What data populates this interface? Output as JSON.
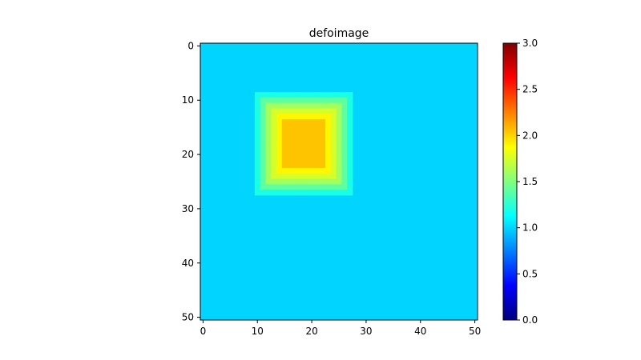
{
  "chart_data": {
    "type": "heatmap",
    "title": "defoimage",
    "xlabel": "",
    "ylabel": "",
    "grid_size": [
      51,
      51
    ],
    "xlim": [
      -0.5,
      50.5
    ],
    "ylim": [
      50.5,
      -0.5
    ],
    "x_ticks": [
      0,
      10,
      20,
      30,
      40,
      50
    ],
    "y_ticks": [
      0,
      10,
      20,
      30,
      40,
      50
    ],
    "x_tick_labels": [
      "0",
      "10",
      "20",
      "30",
      "40",
      "50"
    ],
    "y_tick_labels": [
      "0",
      "10",
      "20",
      "30",
      "40",
      "50"
    ],
    "colormap": "jet",
    "vmin": 0.0,
    "vmax": 3.0,
    "background_value": 1.0,
    "blob": {
      "description_values": "graded square bump above background",
      "layers": [
        {
          "rows": [
            9,
            27
          ],
          "cols": [
            10,
            27
          ],
          "value": 1.2
        },
        {
          "rows": [
            10,
            26
          ],
          "cols": [
            11,
            26
          ],
          "value": 1.4
        },
        {
          "rows": [
            11,
            25
          ],
          "cols": [
            12,
            25
          ],
          "value": 1.6
        },
        {
          "rows": [
            12,
            24
          ],
          "cols": [
            13,
            24
          ],
          "value": 1.75
        },
        {
          "rows": [
            13,
            23
          ],
          "cols": [
            14,
            23
          ],
          "value": 1.9
        },
        {
          "rows": [
            14,
            22
          ],
          "cols": [
            15,
            22
          ],
          "value": 2.05
        }
      ]
    },
    "colorbar": {
      "ticks": [
        0.0,
        0.5,
        1.0,
        1.5,
        2.0,
        2.5,
        3.0
      ],
      "tick_labels": [
        "0.0",
        "0.5",
        "1.0",
        "1.5",
        "2.0",
        "2.5",
        "3.0"
      ]
    }
  }
}
